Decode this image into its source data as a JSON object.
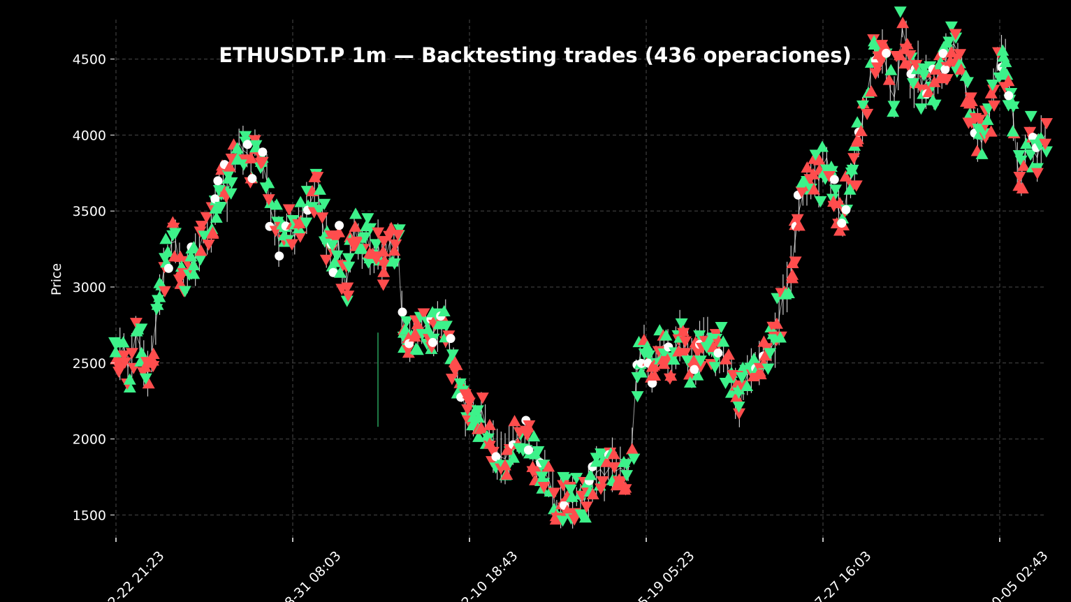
{
  "chart_data": {
    "type": "line",
    "title": "ETHUSDT.P 1m — Backtesting trades (436 operaciones)",
    "ylabel": "Price",
    "xlabel": "",
    "ylim": [
      1350,
      4760
    ],
    "yticks": [
      1500,
      2000,
      2500,
      3000,
      3500,
      4000,
      4500
    ],
    "xtick_labels": [
      "2-22 21:23",
      "8-31 08:03",
      "2-10 18:43",
      "5-19 05:23",
      "7-27 16:03",
      "0-05 02:43"
    ],
    "grid": true,
    "trade_count": 436,
    "series": [
      {
        "values": [
          2520,
          2560,
          2610,
          2470,
          2550,
          2690,
          2620,
          2500,
          2430,
          2560,
          2760,
          2950,
          3100,
          3200,
          3290,
          3300,
          3150,
          3060,
          3100,
          3160,
          3180,
          3260,
          3350,
          3330,
          3400,
          3550,
          3650,
          3700,
          3600,
          3750,
          3850,
          3950,
          3900,
          3880,
          3820,
          3950,
          3900,
          3800,
          3700,
          3500,
          3420,
          3300,
          3350,
          3400,
          3380,
          3330,
          3420,
          3480,
          3520,
          3560,
          3620,
          3600,
          3420,
          3300,
          3250,
          3200,
          3300,
          3100,
          3000,
          3200,
          3400,
          3300,
          3250,
          3350,
          3250,
          3200,
          3280,
          3150,
          3200,
          3300,
          3250,
          3280,
          2800,
          2700,
          2650,
          2720,
          2700,
          2720,
          2750,
          2700,
          2700,
          2740,
          2720,
          2760,
          2600,
          2500,
          2400,
          2300,
          2200,
          2250,
          2150,
          2100,
          2200,
          2100,
          2050,
          1950,
          1900,
          1880,
          1870,
          1920,
          1980,
          2000,
          2020,
          2040,
          1980,
          1900,
          1850,
          1800,
          1780,
          1730,
          1650,
          1520,
          1580,
          1620,
          1600,
          1580,
          1620,
          1590,
          1600,
          1650,
          1720,
          1780,
          1800,
          1760,
          1800,
          1830,
          1790,
          1810,
          1790,
          1800,
          2000,
          2400,
          2550,
          2600,
          2500,
          2450,
          2500,
          2600,
          2620,
          2550,
          2500,
          2600,
          2680,
          2620,
          2560,
          2500,
          2540,
          2600,
          2650,
          2700,
          2620,
          2560,
          2600,
          2540,
          2480,
          2420,
          2300,
          2200,
          2350,
          2420,
          2450,
          2480,
          2500,
          2550,
          2560,
          2600,
          2650,
          2800,
          2950,
          3000,
          3100,
          3300,
          3500,
          3600,
          3650,
          3700,
          3750,
          3700,
          3800,
          3850,
          3700,
          3600,
          3500,
          3450,
          3600,
          3700,
          3800,
          3950,
          4100,
          4250,
          4400,
          4500,
          4450,
          4550,
          4450,
          4300,
          4250,
          4400,
          4700,
          4600,
          4400,
          4350,
          4450,
          4300,
          4350,
          4380,
          4320,
          4400,
          4450,
          4500,
          4580,
          4600,
          4550,
          4450,
          4300,
          4200,
          4100,
          4000,
          3950,
          4050,
          4150,
          4300,
          4500,
          4550,
          4450,
          4300,
          4100,
          3800,
          3700,
          3900,
          4000,
          3900,
          3850,
          3950,
          4000
        ]
      }
    ],
    "colors": {
      "background": "#000000",
      "long_marker": "#3df28a",
      "short_marker": "#ff4d4d",
      "exit_marker": "#ffffff",
      "grid": "#4a4a4a",
      "text": "#ffffff"
    }
  }
}
